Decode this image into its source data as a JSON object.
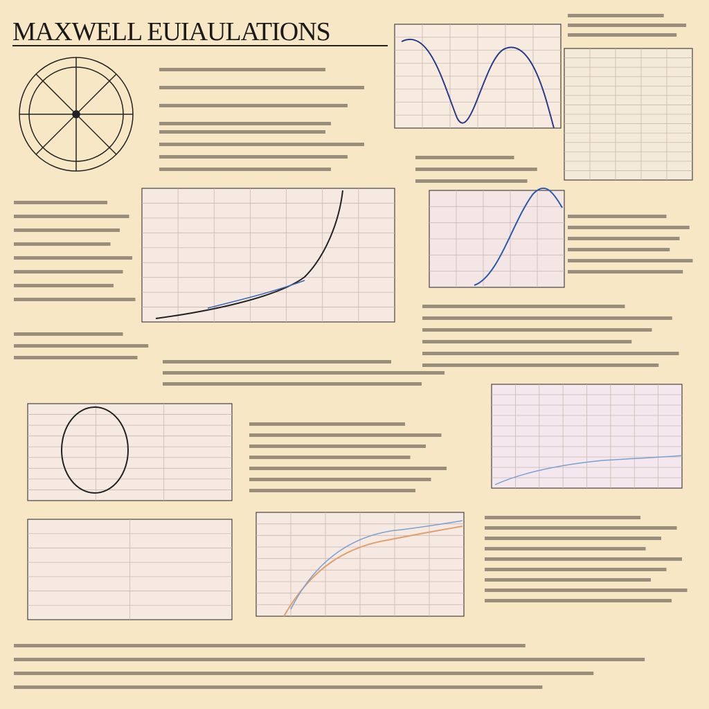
{
  "header": {
    "title": "MAXWELL EUIAULATIONS"
  }
}
